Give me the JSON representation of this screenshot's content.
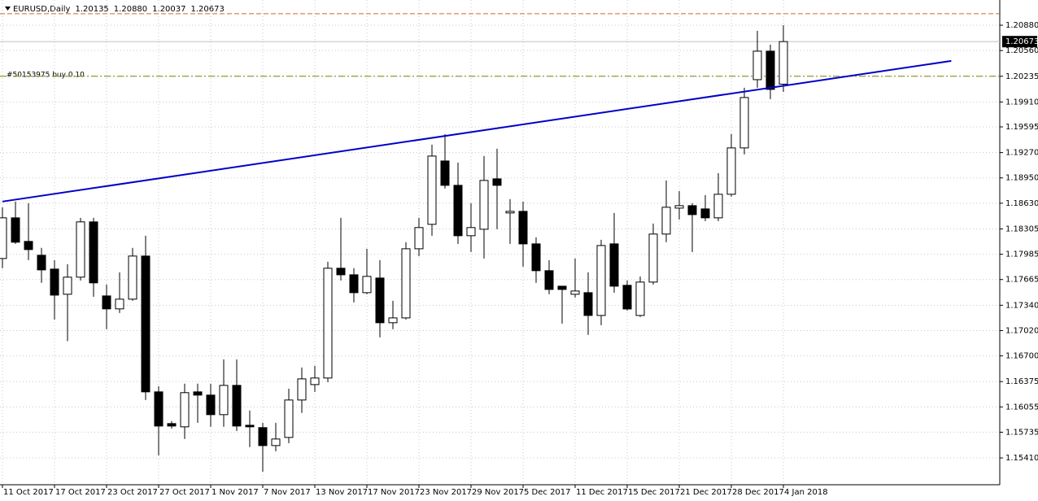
{
  "chart_data": {
    "type": "candlestick",
    "header": {
      "symbol": "EURUSD,Daily",
      "values": [
        "1.20135",
        "1.20880",
        "1.20037",
        "1.20673"
      ]
    },
    "order_label": "#50153975 buy 0.10",
    "categories": [
      "11 Oct 2017",
      null,
      null,
      null,
      "17 Oct 2017",
      null,
      null,
      null,
      "23 Oct 2017",
      null,
      null,
      null,
      "27 Oct 2017",
      null,
      null,
      null,
      "1 Nov 2017",
      null,
      null,
      null,
      "7 Nov 2017",
      null,
      null,
      null,
      "13 Nov 2017",
      null,
      null,
      null,
      "17 Nov 2017",
      null,
      null,
      null,
      "23 Nov 2017",
      null,
      null,
      null,
      "29 Nov 2017",
      null,
      null,
      null,
      "5 Dec 2017",
      null,
      null,
      null,
      "11 Dec 2017",
      null,
      null,
      null,
      "15 Dec 2017",
      null,
      null,
      null,
      "21 Dec 2017",
      null,
      null,
      null,
      "28 Dec 2017",
      null,
      null,
      null,
      "4 Jan 2018"
    ],
    "open": [
      1.17931,
      1.18445,
      1.18147,
      1.17972,
      1.17797,
      1.17479,
      1.17695,
      1.18394,
      1.17458,
      1.17294,
      1.17417,
      1.17962,
      1.16245,
      1.15844,
      1.15803,
      1.16245,
      1.16204,
      1.15957,
      1.16327,
      1.15823,
      1.15793,
      1.15566,
      1.15669,
      1.16142,
      1.16337,
      1.1642,
      1.17808,
      1.17725,
      1.17499,
      1.17684,
      1.17119,
      1.1718,
      1.18054,
      1.18363,
      1.19164,
      1.18856,
      1.18219,
      1.18301,
      1.18938,
      1.18507,
      1.18527,
      1.18116,
      1.17777,
      1.17581,
      1.17479,
      1.17499,
      1.17211,
      1.18116,
      1.17592,
      1.17211,
      1.17633,
      1.1824,
      1.18568,
      1.18599,
      1.18558,
      1.18445,
      1.18743,
      1.19329,
      1.20192,
      1.20552,
      1.20135
    ],
    "high": [
      1.18579,
      1.18651,
      1.1863,
      1.18065,
      1.1791,
      1.17859,
      1.18445,
      1.18445,
      1.17602,
      1.17756,
      1.18065,
      1.18219,
      1.16317,
      1.15875,
      1.16348,
      1.16348,
      1.16348,
      1.16656,
      1.16656,
      1.16009,
      1.15854,
      1.15854,
      1.16286,
      1.16553,
      1.16574,
      1.1789,
      1.18445,
      1.17808,
      1.18054,
      1.1791,
      1.17396,
      1.18137,
      1.18445,
      1.1937,
      1.19504,
      1.19144,
      1.1863,
      1.19226,
      1.19319,
      1.18681,
      1.18651,
      1.18198,
      1.1791,
      1.17581,
      1.17931,
      1.17756,
      1.18167,
      1.18507,
      1.17653,
      1.17705,
      1.18373,
      1.18918,
      1.18784,
      1.1863,
      1.18733,
      1.1901,
      1.19504,
      1.2009,
      1.20809,
      1.20635,
      1.2088
    ],
    "low": [
      1.17808,
      1.18116,
      1.1791,
      1.17623,
      1.1716,
      1.16887,
      1.17653,
      1.17448,
      1.17037,
      1.17242,
      1.17396,
      1.16142,
      1.15443,
      1.15782,
      1.15649,
      1.15854,
      1.15803,
      1.15803,
      1.15751,
      1.15546,
      1.15237,
      1.15494,
      1.15597,
      1.15978,
      1.16245,
      1.16368,
      1.17653,
      1.17376,
      1.17479,
      1.16934,
      1.17037,
      1.1716,
      1.17962,
      1.18219,
      1.18815,
      1.18116,
      1.18013,
      1.17931,
      1.18301,
      1.18116,
      1.17828,
      1.17623,
      1.17479,
      1.17108,
      1.17437,
      1.16965,
      1.17088,
      1.17499,
      1.17273,
      1.17191,
      1.17602,
      1.18137,
      1.18424,
      1.18013,
      1.18404,
      1.18404,
      1.18712,
      1.19247,
      1.2009,
      1.19946,
      1.20037
    ],
    "close": [
      1.18445,
      1.18137,
      1.18044,
      1.17787,
      1.17468,
      1.17695,
      1.18394,
      1.17623,
      1.17294,
      1.17417,
      1.17962,
      1.16245,
      1.15813,
      1.15813,
      1.16235,
      1.16204,
      1.15957,
      1.16327,
      1.15813,
      1.15803,
      1.15566,
      1.15649,
      1.16142,
      1.16409,
      1.1642,
      1.17808,
      1.17725,
      1.17499,
      1.17705,
      1.17119,
      1.1718,
      1.18054,
      1.18322,
      1.19226,
      1.18856,
      1.18219,
      1.18322,
      1.18918,
      1.18856,
      1.18527,
      1.18116,
      1.17777,
      1.1754,
      1.1754,
      1.1752,
      1.17211,
      1.18095,
      1.17581,
      1.17293,
      1.17633,
      1.1824,
      1.18579,
      1.18599,
      1.18486,
      1.18445,
      1.18743,
      1.19329,
      1.19966,
      1.20552,
      1.20069,
      1.20673
    ],
    "up_color": "#ffffff",
    "down_color": "#000000",
    "outline_color": "#000000",
    "ylim": [
      1.15071,
      1.21199
    ],
    "yticks": [
      {
        "value": 1.2088,
        "label": "1.20880"
      },
      {
        "value": 1.2056,
        "label": "1.20560"
      },
      1.20235,
      {
        "value": 1.1991,
        "label": "1.19910"
      },
      1.19595,
      {
        "value": 1.1927,
        "label": "1.19270"
      },
      {
        "value": 1.1895,
        "label": "1.18950"
      },
      {
        "value": 1.1863,
        "label": "1.18630"
      },
      1.18305,
      1.17985,
      1.17665,
      {
        "value": 1.1734,
        "label": "1.17340"
      },
      {
        "value": 1.1702,
        "label": "1.17020"
      },
      {
        "value": 1.167,
        "label": "1.16700"
      },
      1.16375,
      1.16055,
      1.15735,
      {
        "value": 1.1541,
        "label": "1.15410"
      }
    ],
    "grid": true,
    "current_price": {
      "value": 1.20673,
      "label": "1.20673"
    },
    "trendline": {
      "x": [
        0,
        72.9
      ],
      "y": [
        1.18651,
        1.20429
      ],
      "color": "#0000c8"
    },
    "order_line": {
      "value": 1.20235,
      "color": "#808000"
    },
    "target_line": {
      "value": 1.21025,
      "color": "#d2691e"
    }
  }
}
